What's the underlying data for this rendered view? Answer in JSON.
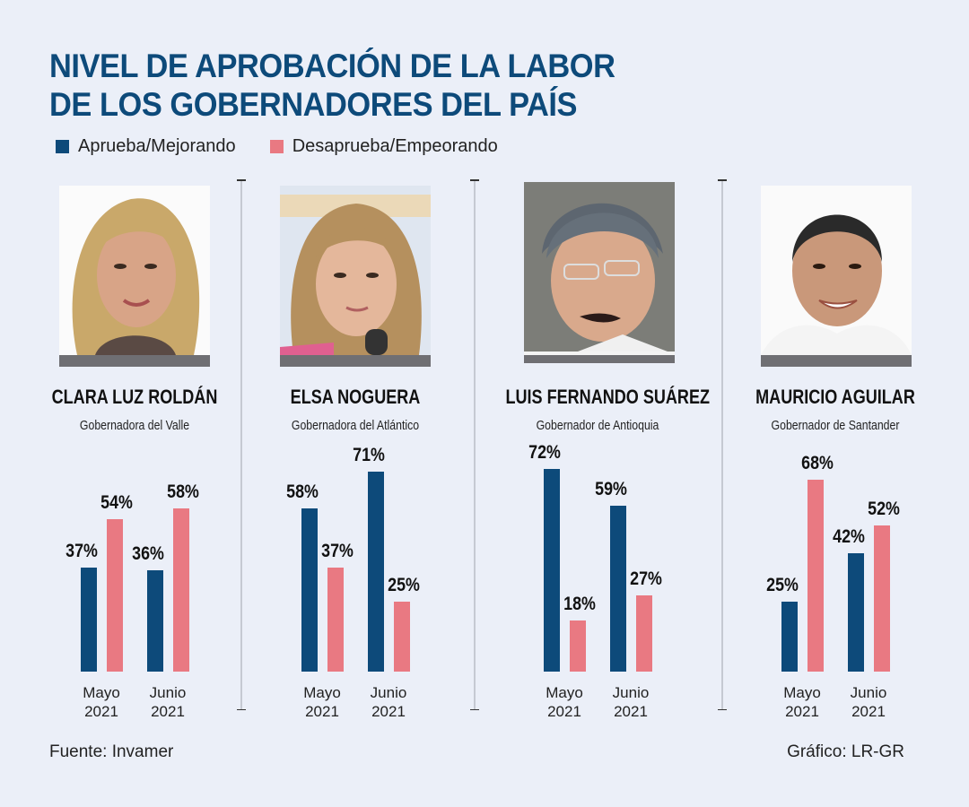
{
  "title_line1": "NIVEL DE APROBACIÓN DE LA LABOR",
  "title_line2": "DE LOS GOBERNADORES DEL PAÍS",
  "legend": [
    {
      "label": "Aprueba/Mejorando",
      "color": "#0d4a7a"
    },
    {
      "label": "Desaprueba/Empeorando",
      "color": "#e97982"
    }
  ],
  "footer": {
    "source": "Fuente: Invamer",
    "credit": "Gráfico: LR-GR"
  },
  "chart_data": [
    {
      "type": "bar",
      "title": "CLARA LUZ ROLDÁN",
      "subtitle": "Gobernadora del Valle",
      "categories": [
        "Mayo 2021",
        "Junio 2021"
      ],
      "category_lines": [
        [
          "Mayo",
          "2021"
        ],
        [
          "Junio",
          "2021"
        ]
      ],
      "series": [
        {
          "name": "Aprueba/Mejorando",
          "values": [
            37,
            36
          ]
        },
        {
          "name": "Desaprueba/Empeorando",
          "values": [
            54,
            58
          ]
        }
      ],
      "ylim": [
        0,
        100
      ],
      "grid": false,
      "legend": "top-left"
    },
    {
      "type": "bar",
      "title": "ELSA NOGUERA",
      "subtitle": "Gobernadora del Atlántico",
      "categories": [
        "Mayo 2021",
        "Junio 2021"
      ],
      "category_lines": [
        [
          "Mayo",
          "2021"
        ],
        [
          "Junio",
          "2021"
        ]
      ],
      "series": [
        {
          "name": "Aprueba/Mejorando",
          "values": [
            58,
            71
          ]
        },
        {
          "name": "Desaprueba/Empeorando",
          "values": [
            37,
            25
          ]
        }
      ],
      "ylim": [
        0,
        100
      ],
      "grid": false,
      "legend": "top-left"
    },
    {
      "type": "bar",
      "title": "LUIS FERNANDO SUÁREZ",
      "subtitle": "Gobernador de Antioquia",
      "categories": [
        "Mayo 2021",
        "Junio 2021"
      ],
      "category_lines": [
        [
          "Mayo",
          "2021"
        ],
        [
          "Junio",
          "2021"
        ]
      ],
      "series": [
        {
          "name": "Aprueba/Mejorando",
          "values": [
            72,
            59
          ]
        },
        {
          "name": "Desaprueba/Empeorando",
          "values": [
            18,
            27
          ]
        }
      ],
      "ylim": [
        0,
        100
      ],
      "grid": false,
      "legend": "top-left"
    },
    {
      "type": "bar",
      "title": "MAURICIO AGUILAR",
      "subtitle": "Gobernador de Santander",
      "categories": [
        "Mayo 2021",
        "Junio 2021"
      ],
      "category_lines": [
        [
          "Mayo",
          "2021"
        ],
        [
          "Junio",
          "2021"
        ]
      ],
      "series": [
        {
          "name": "Aprueba/Mejorando",
          "values": [
            25,
            42
          ]
        },
        {
          "name": "Desaprueba/Empeorando",
          "values": [
            68,
            52
          ]
        }
      ],
      "ylim": [
        0,
        100
      ],
      "grid": false,
      "legend": "top-left"
    }
  ]
}
